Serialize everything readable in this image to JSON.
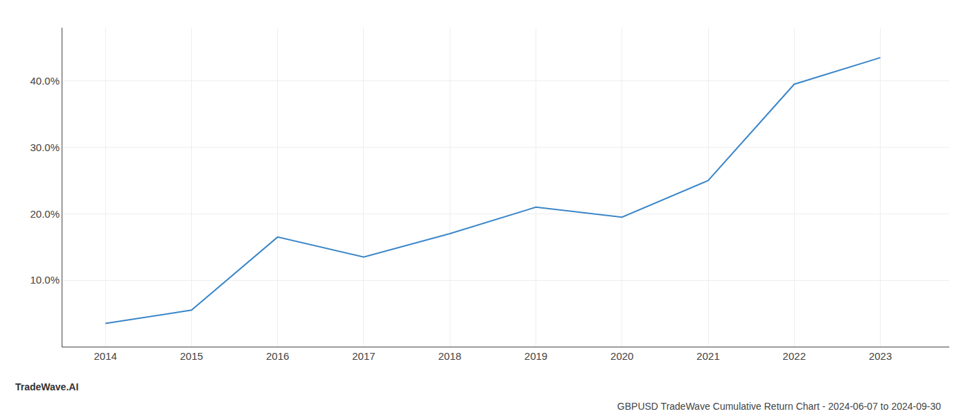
{
  "chart_data": {
    "type": "line",
    "title": "GBPUSD TradeWave Cumulative Return Chart - 2024-06-07 to 2024-09-30",
    "annotations": [
      "TradeWave.AI"
    ],
    "x": [
      2014,
      2015,
      2016,
      2017,
      2018,
      2019,
      2020,
      2021,
      2022,
      2023
    ],
    "values": [
      3.5,
      5.5,
      16.5,
      13.5,
      17.0,
      21.0,
      19.5,
      25.0,
      39.5,
      43.5
    ],
    "color": "#3a86c8",
    "xlim": [
      2013.5,
      2023.8
    ],
    "ylim": [
      0,
      48
    ],
    "xticks": [
      2014,
      2015,
      2016,
      2017,
      2018,
      2019,
      2020,
      2021,
      2022,
      2023
    ],
    "yticks": [
      {
        "value": 10.0,
        "label": "10.0%"
      },
      {
        "value": 20.0,
        "label": "20.0%"
      },
      {
        "value": 30.0,
        "label": "30.0%"
      },
      {
        "value": 40.0,
        "label": "40.0%"
      }
    ],
    "grid": true
  }
}
